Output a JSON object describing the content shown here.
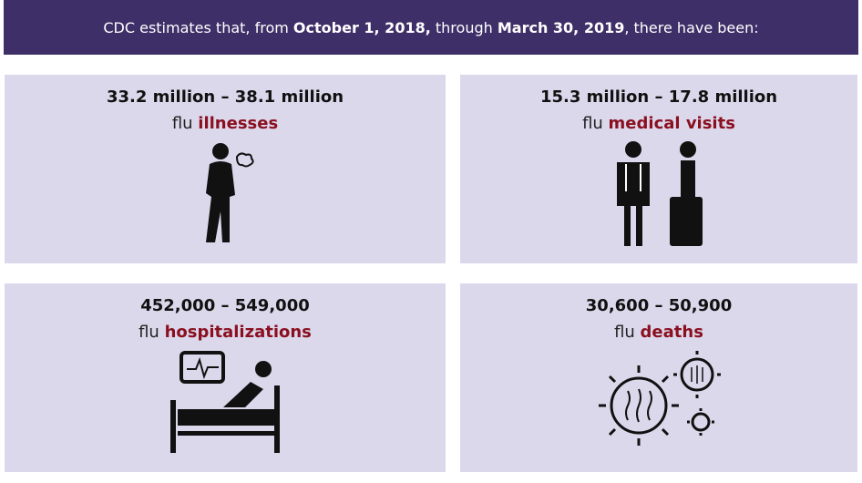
{
  "header": {
    "segments": [
      {
        "text": "CDC estimates that, from ",
        "bold": false
      },
      {
        "text": "October 1, 2018,",
        "bold": true
      },
      {
        "text": " through ",
        "bold": false
      },
      {
        "text": "March 30, 2019",
        "bold": true
      },
      {
        "text": ", there have been:",
        "bold": false
      }
    ]
  },
  "cards": [
    {
      "range": "33.2 million – 38.1 million",
      "prefix": "flu",
      "highlight": "illnesses"
    },
    {
      "range": "15.3 million – 17.8 million",
      "prefix": "flu",
      "highlight": "medical visits"
    },
    {
      "range": "452,000 – 549,000",
      "prefix": "flu",
      "highlight": "hospitalizations"
    },
    {
      "range": "30,600 – 50,900",
      "prefix": "flu",
      "highlight": "deaths"
    }
  ]
}
